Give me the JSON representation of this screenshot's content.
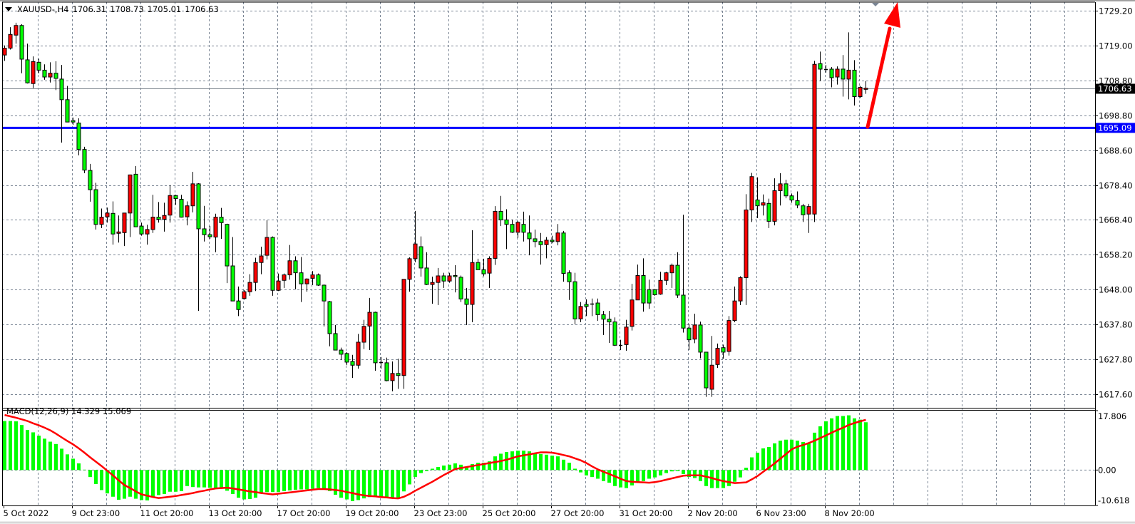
{
  "header": {
    "symbol_timeframe": "XAUUSD-,H4",
    "open": "1706.31",
    "high": "1708.73",
    "low": "1705.01",
    "close": "1706.63"
  },
  "colors": {
    "bull_candle": "#ff0000",
    "bear_candle": "#00ff00",
    "candle_outline": "#000000",
    "grid": "#7a8594",
    "horizontal_line": "#0000ff",
    "bid_line": "#808890",
    "macd_histogram": "#00ff00",
    "macd_signal": "#ff0000",
    "arrow": "#ff0000"
  },
  "chart_data": {
    "type": "candlestick",
    "symbol": "XAUUSD-",
    "timeframe": "H4",
    "ylim": [
      1613.6,
      1731.7
    ],
    "grid": true,
    "price_ticks": [
      "1729.20",
      "1719.00",
      "1708.80",
      "1698.80",
      "1688.60",
      "1678.40",
      "1668.40",
      "1658.20",
      "1648.00",
      "1637.80",
      "1627.80",
      "1617.60"
    ],
    "time_labels": [
      "5 Oct 2022",
      "9 Oct 23:00",
      "11 Oct 20:00",
      "13 Oct 20:00",
      "17 Oct 20:00",
      "19 Oct 20:00",
      "23 Oct 23:00",
      "25 Oct 20:00",
      "27 Oct 20:00",
      "31 Oct 20:00",
      "2 Nov 20:00",
      "6 Nov 23:00",
      "8 Nov 20:00"
    ],
    "time_label_every_bars": 12,
    "ohlc_fields": [
      "open",
      "high",
      "low",
      "close"
    ],
    "ohlc": [
      [
        1716.3,
        1719.1,
        1714.6,
        1718.3
      ],
      [
        1718.3,
        1724.4,
        1717.9,
        1722.3
      ],
      [
        1722.1,
        1725.7,
        1719.6,
        1724.9
      ],
      [
        1724.9,
        1725.3,
        1711.0,
        1715.1
      ],
      [
        1714.9,
        1719.6,
        1708.0,
        1708.2
      ],
      [
        1708.0,
        1715.9,
        1706.7,
        1714.4
      ],
      [
        1714.2,
        1715.2,
        1711.0,
        1711.9
      ],
      [
        1711.9,
        1713.6,
        1709.1,
        1709.9
      ],
      [
        1709.9,
        1714.2,
        1708.3,
        1711.0
      ],
      [
        1711.0,
        1714.5,
        1706.1,
        1709.5
      ],
      [
        1709.3,
        1713.4,
        1690.8,
        1703.3
      ],
      [
        1703.3,
        1707.3,
        1696.8,
        1696.8
      ],
      [
        1697.2,
        1698.1,
        1696.0,
        1696.8
      ],
      [
        1696.5,
        1697.9,
        1687.1,
        1688.8
      ],
      [
        1688.8,
        1689.6,
        1681.9,
        1682.8
      ],
      [
        1682.7,
        1684.6,
        1673.6,
        1677.1
      ],
      [
        1677.1,
        1679.1,
        1665.5,
        1667.0
      ],
      [
        1667.0,
        1671.6,
        1665.9,
        1669.1
      ],
      [
        1669.2,
        1671.9,
        1667.5,
        1670.3
      ],
      [
        1670.2,
        1673.7,
        1661.1,
        1664.2
      ],
      [
        1664.4,
        1669.6,
        1661.7,
        1664.8
      ],
      [
        1664.6,
        1670.3,
        1660.7,
        1670.3
      ],
      [
        1670.3,
        1681.5,
        1663.3,
        1681.4
      ],
      [
        1681.6,
        1684.0,
        1666.3,
        1666.3
      ],
      [
        1666.5,
        1667.5,
        1663.7,
        1664.2
      ],
      [
        1664.2,
        1666.9,
        1661.1,
        1665.5
      ],
      [
        1665.5,
        1675.6,
        1664.5,
        1669.1
      ],
      [
        1669.1,
        1673.5,
        1667.5,
        1668.5
      ],
      [
        1668.5,
        1673.3,
        1664.9,
        1669.6
      ],
      [
        1669.7,
        1678.4,
        1667.5,
        1675.4
      ],
      [
        1675.4,
        1675.6,
        1672.7,
        1674.5
      ],
      [
        1674.3,
        1675.6,
        1669.0,
        1669.1
      ],
      [
        1669.2,
        1673.7,
        1666.7,
        1672.4
      ],
      [
        1672.4,
        1682.3,
        1670.5,
        1678.8
      ],
      [
        1678.8,
        1679.0,
        1641.8,
        1665.7
      ],
      [
        1665.7,
        1672.4,
        1662.0,
        1664.0
      ],
      [
        1664.0,
        1666.5,
        1662.8,
        1663.4
      ],
      [
        1663.3,
        1670.1,
        1658.9,
        1669.1
      ],
      [
        1669.1,
        1671.8,
        1662.8,
        1667.5
      ],
      [
        1667.0,
        1667.2,
        1649.9,
        1654.9
      ],
      [
        1654.9,
        1663.3,
        1644.7,
        1644.7
      ],
      [
        1644.7,
        1648.9,
        1640.3,
        1642.2
      ],
      [
        1645.4,
        1647.9,
        1645.1,
        1647.4
      ],
      [
        1647.4,
        1652.5,
        1646.2,
        1650.1
      ],
      [
        1650.1,
        1657.3,
        1647.6,
        1655.9
      ],
      [
        1655.9,
        1660.5,
        1652.5,
        1657.8
      ],
      [
        1658.0,
        1668.2,
        1656.8,
        1663.2
      ],
      [
        1663.2,
        1663.5,
        1646.2,
        1647.8
      ],
      [
        1647.8,
        1652.7,
        1647.6,
        1650.5
      ],
      [
        1650.7,
        1652.7,
        1648.5,
        1652.3
      ],
      [
        1652.3,
        1661.0,
        1650.9,
        1656.4
      ],
      [
        1656.4,
        1657.7,
        1648.1,
        1652.9
      ],
      [
        1652.9,
        1657.5,
        1644.4,
        1649.7
      ],
      [
        1649.7,
        1651.3,
        1647.4,
        1651.1
      ],
      [
        1651.3,
        1653.4,
        1649.3,
        1652.3
      ],
      [
        1652.3,
        1652.7,
        1649.1,
        1649.3
      ],
      [
        1649.3,
        1649.5,
        1637.3,
        1644.7
      ],
      [
        1644.5,
        1644.7,
        1631.5,
        1635.2
      ],
      [
        1635.2,
        1637.7,
        1630.4,
        1630.4
      ],
      [
        1630.4,
        1631.1,
        1627.5,
        1629.2
      ],
      [
        1629.4,
        1629.8,
        1626.0,
        1626.9
      ],
      [
        1627.1,
        1629.0,
        1622.3,
        1626.0
      ],
      [
        1626.0,
        1635.1,
        1625.0,
        1632.7
      ],
      [
        1632.7,
        1639.2,
        1630.7,
        1637.3
      ],
      [
        1637.4,
        1645.6,
        1630.4,
        1641.4
      ],
      [
        1641.4,
        1641.6,
        1624.4,
        1626.7
      ],
      [
        1626.7,
        1628.4,
        1625.0,
        1626.8
      ],
      [
        1626.7,
        1628.2,
        1621.3,
        1621.5
      ],
      [
        1621.5,
        1627.1,
        1618.4,
        1623.6
      ],
      [
        1623.6,
        1627.9,
        1619.1,
        1623.0
      ],
      [
        1623.0,
        1651.0,
        1619.1,
        1651.0
      ],
      [
        1651.0,
        1657.4,
        1647.4,
        1657.0
      ],
      [
        1657.0,
        1670.9,
        1656.0,
        1661.3
      ],
      [
        1660.5,
        1663.5,
        1651.8,
        1654.3
      ],
      [
        1654.3,
        1658.9,
        1649.3,
        1649.5
      ],
      [
        1649.5,
        1651.8,
        1643.9,
        1650.1
      ],
      [
        1650.1,
        1654.3,
        1643.5,
        1652.0
      ],
      [
        1652.0,
        1652.9,
        1648.5,
        1650.5
      ],
      [
        1650.5,
        1652.9,
        1650.0,
        1652.0
      ],
      [
        1652.1,
        1655.1,
        1647.2,
        1651.8
      ],
      [
        1651.6,
        1652.1,
        1644.4,
        1645.3
      ],
      [
        1645.3,
        1648.5,
        1637.7,
        1643.7
      ],
      [
        1643.7,
        1665.3,
        1638.5,
        1655.9
      ],
      [
        1655.9,
        1657.0,
        1653.8,
        1653.8
      ],
      [
        1653.8,
        1657.0,
        1651.9,
        1652.6
      ],
      [
        1652.8,
        1657.7,
        1648.5,
        1657.1
      ],
      [
        1657.1,
        1672.3,
        1655.2,
        1670.8
      ],
      [
        1670.8,
        1675.3,
        1666.5,
        1668.3
      ],
      [
        1668.3,
        1671.4,
        1659.8,
        1667.0
      ],
      [
        1667.0,
        1668.4,
        1664.5,
        1664.7
      ],
      [
        1664.7,
        1667.9,
        1663.1,
        1667.6
      ],
      [
        1667.0,
        1670.7,
        1662.0,
        1664.7
      ],
      [
        1664.5,
        1669.6,
        1658.0,
        1662.8
      ],
      [
        1662.8,
        1665.5,
        1660.3,
        1662.0
      ],
      [
        1662.0,
        1664.5,
        1655.3,
        1661.1
      ],
      [
        1661.1,
        1663.3,
        1657.1,
        1662.4
      ],
      [
        1662.4,
        1663.7,
        1661.5,
        1662.0
      ],
      [
        1662.0,
        1667.1,
        1660.9,
        1664.5
      ],
      [
        1664.5,
        1665.1,
        1650.3,
        1652.7
      ],
      [
        1652.9,
        1653.6,
        1645.0,
        1650.3
      ],
      [
        1650.3,
        1652.9,
        1637.9,
        1639.5
      ],
      [
        1639.5,
        1644.4,
        1638.5,
        1643.1
      ],
      [
        1643.7,
        1645.2,
        1640.3,
        1643.1
      ],
      [
        1643.9,
        1645.4,
        1640.3,
        1643.9
      ],
      [
        1644.1,
        1645.4,
        1638.9,
        1640.7
      ],
      [
        1640.7,
        1641.8,
        1634.8,
        1639.4
      ],
      [
        1639.4,
        1641.8,
        1632.5,
        1638.6
      ],
      [
        1638.6,
        1639.9,
        1631.6,
        1631.8
      ],
      [
        1631.8,
        1633.4,
        1630.4,
        1631.9
      ],
      [
        1632.0,
        1639.2,
        1630.2,
        1637.1
      ],
      [
        1637.3,
        1649.7,
        1636.1,
        1645.0
      ],
      [
        1645.0,
        1655.3,
        1645.0,
        1652.1
      ],
      [
        1652.1,
        1657.1,
        1641.6,
        1644.1
      ],
      [
        1648.0,
        1650.9,
        1642.4,
        1644.1
      ],
      [
        1648.0,
        1648.0,
        1646.2,
        1646.5
      ],
      [
        1646.7,
        1653.2,
        1646.5,
        1650.7
      ],
      [
        1650.7,
        1653.2,
        1649.3,
        1652.9
      ],
      [
        1652.9,
        1655.6,
        1648.5,
        1655.1
      ],
      [
        1655.1,
        1658.9,
        1645.6,
        1646.4
      ],
      [
        1646.4,
        1669.8,
        1635.5,
        1636.8
      ],
      [
        1636.8,
        1638.0,
        1630.4,
        1633.4
      ],
      [
        1633.6,
        1641.0,
        1632.4,
        1637.7
      ],
      [
        1637.7,
        1638.7,
        1628.0,
        1629.8
      ],
      [
        1629.8,
        1629.8,
        1616.8,
        1619.4
      ],
      [
        1619.0,
        1634.5,
        1616.8,
        1626.0
      ],
      [
        1626.2,
        1632.3,
        1625.2,
        1630.9
      ],
      [
        1631.1,
        1632.0,
        1627.9,
        1629.8
      ],
      [
        1630.0,
        1640.3,
        1628.8,
        1639.0
      ],
      [
        1639.0,
        1648.9,
        1638.5,
        1644.7
      ],
      [
        1644.7,
        1651.9,
        1643.5,
        1651.5
      ],
      [
        1651.5,
        1675.8,
        1643.5,
        1671.2
      ],
      [
        1671.2,
        1682.0,
        1667.7,
        1680.9
      ],
      [
        1674.1,
        1680.7,
        1668.8,
        1672.4
      ],
      [
        1672.6,
        1675.7,
        1669.6,
        1673.3
      ],
      [
        1673.1,
        1674.5,
        1665.9,
        1667.9
      ],
      [
        1667.9,
        1680.4,
        1666.7,
        1676.8
      ],
      [
        1676.8,
        1681.9,
        1672.5,
        1678.8
      ],
      [
        1678.8,
        1680.0,
        1674.6,
        1675.3
      ],
      [
        1675.3,
        1676.0,
        1673.3,
        1674.1
      ],
      [
        1673.9,
        1676.6,
        1671.7,
        1672.6
      ],
      [
        1672.4,
        1673.0,
        1667.7,
        1669.8
      ],
      [
        1670.0,
        1673.0,
        1664.5,
        1672.2
      ],
      [
        1670.0,
        1714.6,
        1667.7,
        1713.6
      ],
      [
        1713.8,
        1717.3,
        1708.8,
        1712.2
      ],
      [
        1712.2,
        1713.4,
        1711.2,
        1712.2
      ],
      [
        1712.2,
        1712.8,
        1706.9,
        1709.7
      ],
      [
        1709.9,
        1713.0,
        1707.7,
        1712.2
      ],
      [
        1712.2,
        1716.3,
        1704.2,
        1709.3
      ],
      [
        1709.3,
        1722.9,
        1703.4,
        1711.9
      ],
      [
        1711.9,
        1714.8,
        1701.6,
        1704.2
      ],
      [
        1704.2,
        1707.3,
        1703.8,
        1706.9
      ],
      [
        1706.31,
        1708.73,
        1705.01,
        1706.63
      ]
    ],
    "bid_line": {
      "price": 1706.63,
      "label": "1706.63"
    },
    "horizontal_line": {
      "price": 1695.09,
      "label": "1695.09"
    },
    "annotations": [
      {
        "type": "arrow",
        "direction": "up",
        "from_price": 1695.09
      }
    ],
    "indicator": {
      "name": "MACD(12,26,9)",
      "main_value": "14.329",
      "signal_value": "15.069",
      "ylim": [
        -10.618,
        17.806
      ],
      "axis_labels": [
        "17.806",
        "0.00",
        "-10.618"
      ],
      "axis_values": [
        17.806,
        0,
        -10.618
      ],
      "histogram": [
        14.7,
        14.7,
        14.6,
        13.5,
        12.0,
        11.3,
        10.3,
        9.4,
        8.5,
        7.8,
        6.4,
        4.7,
        3.4,
        2.0,
        0.1,
        -2.1,
        -4.2,
        -6.0,
        -7.0,
        -8.0,
        -8.9,
        -8.6,
        -8.0,
        -8.6,
        -9.0,
        -9.1,
        -8.0,
        -7.5,
        -7.2,
        -6.5,
        -6.5,
        -6.3,
        -4.8,
        -5.1,
        -5.2,
        -5.2,
        -5.3,
        -5.3,
        -5.6,
        -6.2,
        -7.2,
        -8.3,
        -8.8,
        -8.7,
        -8.3,
        -7.0,
        -6.6,
        -6.6,
        -6.6,
        -6.3,
        -6.1,
        -5.9,
        -5.8,
        -5.8,
        -5.6,
        -5.4,
        -5.8,
        -6.3,
        -7.4,
        -8.3,
        -8.8,
        -9.3,
        -9.0,
        -8.5,
        -8.1,
        -8.1,
        -8.1,
        -8.3,
        -8.3,
        -8.3,
        -6.4,
        -4.3,
        -2.1,
        -0.9,
        -0.3,
        0.4,
        0.9,
        1.35,
        1.6,
        2.0,
        1.6,
        0.9,
        1.8,
        2.2,
        2.2,
        2.6,
        4.1,
        4.9,
        5.4,
        5.6,
        5.8,
        5.8,
        5.6,
        5.1,
        4.8,
        4.6,
        4.3,
        4.1,
        3.1,
        2.2,
        0.4,
        -0.7,
        -1.6,
        -2.1,
        -2.6,
        -3.3,
        -3.8,
        -4.8,
        -5.2,
        -5.4,
        -4.6,
        -3.6,
        -3.3,
        -2.6,
        -2.2,
        -1.6,
        -0.9,
        -0.4,
        -0.3,
        -1.2,
        -2.1,
        -2.4,
        -3.3,
        -4.8,
        -5.4,
        -5.4,
        -5.4,
        -4.8,
        -3.5,
        -2.2,
        0.7,
        3.8,
        5.2,
        6.5,
        6.9,
        8.0,
        8.8,
        9.1,
        9.1,
        8.8,
        8.4,
        8.0,
        11.2,
        13.1,
        14.6,
        15.5,
        16.2,
        16.2,
        16.4,
        15.5,
        15.1,
        14.329
      ],
      "signal": [
        16.5,
        16.1,
        15.7,
        15.2,
        14.7,
        14.0,
        13.4,
        12.7,
        11.9,
        10.9,
        9.8,
        8.7,
        7.7,
        6.5,
        5.2,
        3.8,
        2.5,
        1.2,
        -0.2,
        -1.6,
        -3.1,
        -4.5,
        -5.4,
        -6.4,
        -7.3,
        -7.7,
        -8.1,
        -8.4,
        -8.2,
        -8.0,
        -7.8,
        -7.5,
        -7.2,
        -6.9,
        -6.5,
        -6.2,
        -5.8,
        -5.5,
        -5.4,
        -5.3,
        -5.5,
        -5.8,
        -6.1,
        -6.4,
        -6.6,
        -6.9,
        -7.1,
        -7.3,
        -7.1,
        -6.9,
        -6.7,
        -6.5,
        -6.3,
        -6.1,
        -5.9,
        -5.7,
        -5.7,
        -5.8,
        -6.0,
        -6.2,
        -6.6,
        -6.9,
        -7.3,
        -7.6,
        -7.8,
        -7.9,
        -8.1,
        -8.2,
        -8.4,
        -8.5,
        -8.0,
        -7.2,
        -6.2,
        -5.3,
        -4.4,
        -3.5,
        -2.5,
        -1.5,
        -0.6,
        0.3,
        0.6,
        0.9,
        1.2,
        1.5,
        1.8,
        2.1,
        2.4,
        2.7,
        3.1,
        3.6,
        4.1,
        4.4,
        4.7,
        5.0,
        5.3,
        5.3,
        5.2,
        4.9,
        4.5,
        4.1,
        3.5,
        2.9,
        2.1,
        1.1,
        0.2,
        -0.5,
        -1.2,
        -1.9,
        -2.6,
        -3.3,
        -3.5,
        -3.6,
        -3.7,
        -3.8,
        -3.6,
        -3.3,
        -2.9,
        -2.5,
        -2.1,
        -1.7,
        -1.6,
        -1.6,
        -1.6,
        -2.0,
        -2.4,
        -2.9,
        -3.3,
        -3.6,
        -3.9,
        -3.8,
        -3.7,
        -2.8,
        -1.8,
        -0.5,
        0.7,
        2.0,
        3.4,
        4.8,
        6.2,
        7.0,
        7.5,
        8.1,
        8.8,
        9.6,
        10.4,
        11.2,
        12.0,
        12.7,
        13.5,
        14.1,
        14.6,
        15.069
      ]
    }
  }
}
